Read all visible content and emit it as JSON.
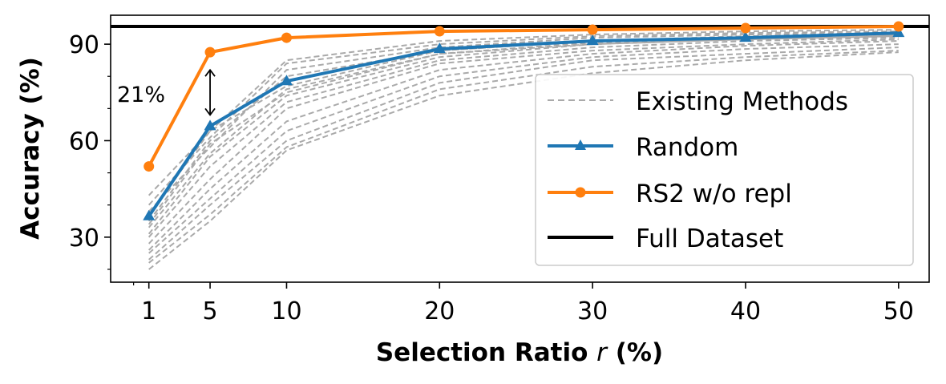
{
  "chart_data": {
    "type": "line",
    "xlabel_main": "Selection Ratio ",
    "xlabel_var": "r",
    "xlabel_unit": " (%)",
    "ylabel": "Accuracy (%)",
    "x": [
      1,
      5,
      10,
      20,
      30,
      40,
      50
    ],
    "x_tick_labels": [
      "1",
      "5",
      "10",
      "20",
      "30",
      "40",
      "50"
    ],
    "y_ticks": [
      30,
      60,
      90
    ],
    "xlim": [
      -1.5,
      52
    ],
    "ylim": [
      16,
      99
    ],
    "full_dataset": 95.5,
    "annotation": "21%",
    "annotation_range": [
      82,
      68
    ],
    "legend_position": "lower-right",
    "series": [
      {
        "name": "Random",
        "color": "#1f77b4",
        "marker": "triangle",
        "values": [
          36.5,
          64.5,
          78.5,
          88.5,
          91,
          92,
          93.5
        ]
      },
      {
        "name": "RS2 w/o repl",
        "color": "#ff7f0e",
        "marker": "circle",
        "values": [
          52,
          87.5,
          92,
          94,
          94.5,
          95,
          95.5
        ]
      },
      {
        "name": "Full Dataset",
        "color": "#000000",
        "marker": "none"
      }
    ],
    "existing_methods": {
      "name": "Existing Methods",
      "color": "#aaaaaa",
      "lines": [
        [
          43,
          63,
          85,
          91,
          93,
          94,
          94.5
        ],
        [
          40,
          61,
          84,
          90,
          92.5,
          93.5,
          94
        ],
        [
          38,
          58,
          82,
          89,
          92,
          93,
          93.5
        ],
        [
          35,
          60,
          80,
          88,
          91,
          92.5,
          93
        ],
        [
          33,
          56,
          76,
          87,
          90.5,
          92,
          93
        ],
        [
          31,
          55,
          74,
          86,
          90,
          91.5,
          92.5
        ],
        [
          30,
          52,
          72,
          85,
          89,
          91,
          92
        ],
        [
          28,
          48,
          70,
          84,
          88,
          90,
          91.5
        ],
        [
          26,
          45,
          66,
          82,
          87,
          89.5,
          91
        ],
        [
          25,
          42,
          63,
          80,
          86,
          88.5,
          90
        ],
        [
          23,
          40,
          60,
          78,
          85,
          87,
          89
        ],
        [
          22,
          37,
          58,
          76,
          83,
          86,
          88
        ],
        [
          20,
          35,
          57,
          74,
          81,
          85,
          87.5
        ],
        [
          37,
          63,
          77,
          88,
          91,
          92,
          93
        ],
        [
          34,
          59,
          75,
          87,
          90,
          91.5,
          92.5
        ]
      ]
    }
  }
}
